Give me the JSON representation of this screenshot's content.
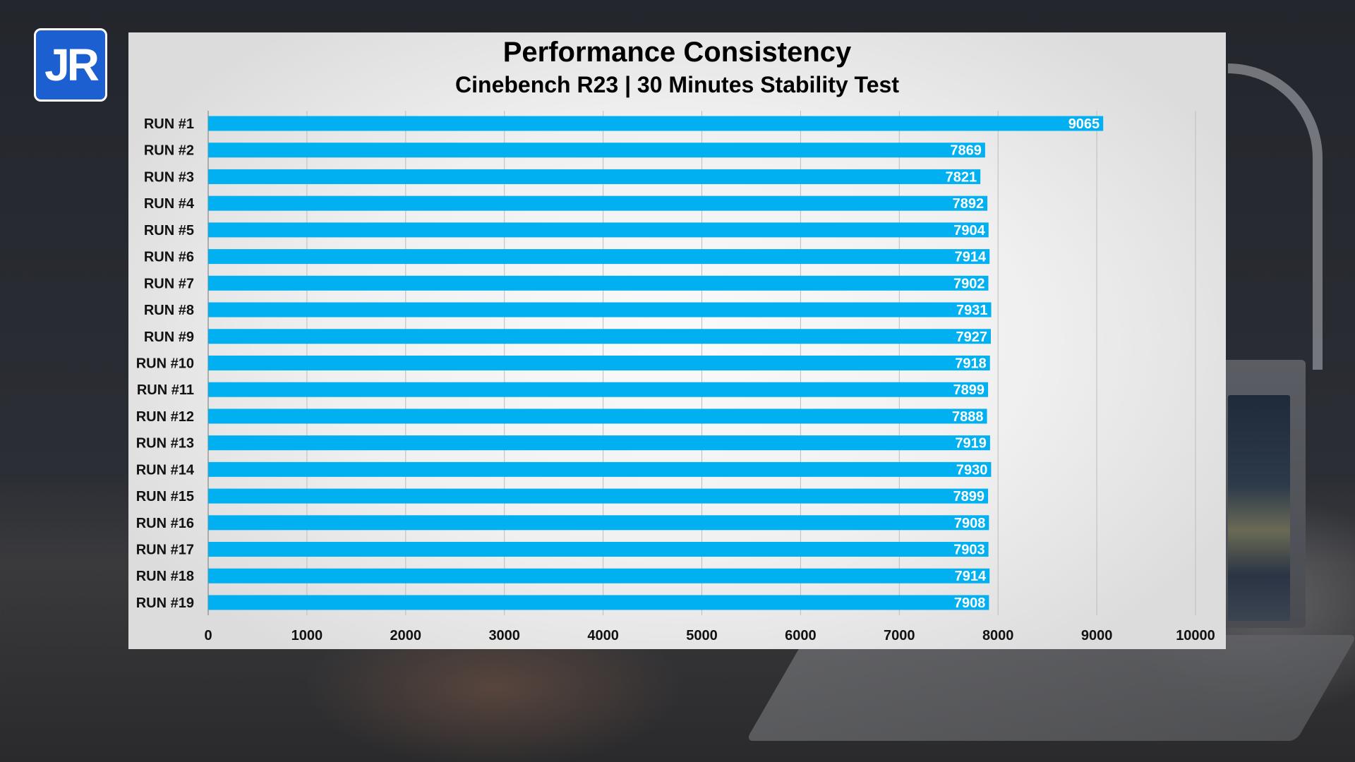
{
  "logo": {
    "text": "JR"
  },
  "colors": {
    "bar": "#00b0f0",
    "logo_bg": "#1b5fd0",
    "gridline": "#bdbdbd"
  },
  "chart_data": {
    "type": "bar",
    "orientation": "horizontal",
    "title": "Performance Consistency",
    "subtitle": "Cinebench R23 | 30 Minutes Stability Test",
    "categories": [
      "RUN #1",
      "RUN #2",
      "RUN #3",
      "RUN #4",
      "RUN #5",
      "RUN #6",
      "RUN #7",
      "RUN #8",
      "RUN #9",
      "RUN #10",
      "RUN #11",
      "RUN #12",
      "RUN #13",
      "RUN #14",
      "RUN #15",
      "RUN #16",
      "RUN #17",
      "RUN #18",
      "RUN #19"
    ],
    "values": [
      9065,
      7869,
      7821,
      7892,
      7904,
      7914,
      7902,
      7931,
      7927,
      7918,
      7899,
      7888,
      7919,
      7930,
      7899,
      7908,
      7903,
      7914,
      7908
    ],
    "xlim": [
      0,
      10000
    ],
    "xticks": [
      0,
      1000,
      2000,
      3000,
      4000,
      5000,
      6000,
      7000,
      8000,
      9000,
      10000
    ],
    "grid": true,
    "data_labels": true
  }
}
